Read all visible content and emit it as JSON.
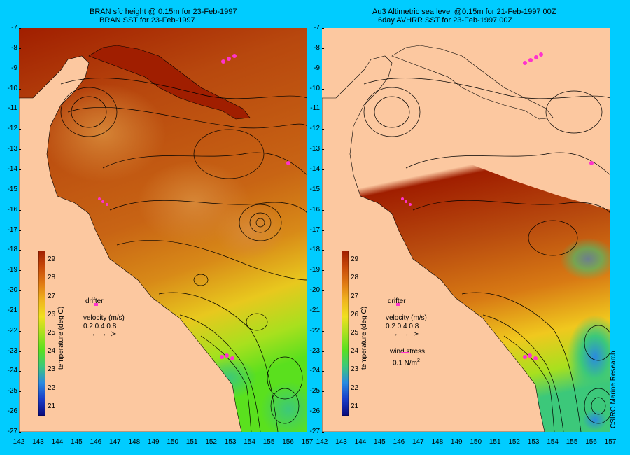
{
  "left_panel": {
    "title_line1": "BRAN sfc height @ 0.15m  for 23-Feb-1997",
    "title_line2": "BRAN SST for 23-Feb-1997"
  },
  "right_panel": {
    "title_line1": "Au3 Altimetric sea level  @0.15m  for 21-Feb-1997 00Z",
    "title_line2": "6day AVHRR SST for 23-Feb-1997 00Z"
  },
  "axes": {
    "y_ticks": [
      "-7",
      "-8",
      "-9",
      "-10",
      "-11",
      "-12",
      "-13",
      "-14",
      "-15",
      "-16",
      "-17",
      "-18",
      "-19",
      "-20",
      "-21",
      "-22",
      "-23",
      "-24",
      "-25",
      "-26",
      "-27"
    ],
    "x_ticks_left": [
      "142",
      "143",
      "144",
      "145",
      "146",
      "147",
      "148",
      "149",
      "150",
      "151",
      "152",
      "153",
      "154",
      "155",
      "156",
      "157"
    ],
    "x_ticks_right": [
      "142",
      "143",
      "144",
      "145",
      "146",
      "147",
      "148",
      "149",
      "150",
      "151",
      "152",
      "153",
      "154",
      "155",
      "156",
      "157"
    ],
    "lon_range": [
      142,
      157
    ],
    "lat_range": [
      -27,
      -7
    ]
  },
  "colorbar": {
    "title": "temperature (deg C)",
    "ticks": [
      "29",
      "28",
      "27",
      "26",
      "25",
      "24",
      "23",
      "22",
      "21"
    ],
    "range": [
      20.5,
      29.5
    ],
    "colors": [
      "#0a0a7a",
      "#1a3cc8",
      "#2a8ae0",
      "#3cc87a",
      "#5ae01e",
      "#a8e01e",
      "#f0e01e",
      "#f0b41e",
      "#e07a14",
      "#c84a0a",
      "#a01e00"
    ]
  },
  "legend": {
    "drifter_label": "drifter",
    "velocity_label": "velocity (m/s)",
    "velocity_values": "0.2 0.4 0.8",
    "wind_label": "wind stress",
    "wind_value": "0.1 N/m",
    "wind_exponent": "2"
  },
  "credit": "CSIRO Marine Research",
  "colors": {
    "background": "#00ccff",
    "land": "#fcc8a0",
    "drifter": "#ff33cc",
    "contour": "#000000"
  }
}
